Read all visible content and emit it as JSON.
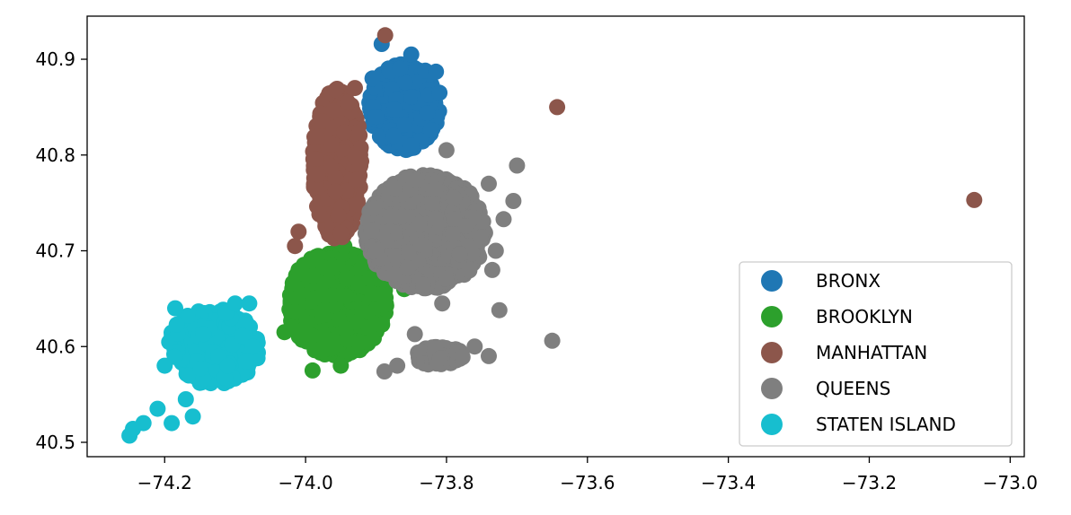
{
  "chart_data": {
    "type": "scatter",
    "title": "",
    "xlabel": "",
    "ylabel": "",
    "xlim": [
      -74.31,
      -72.98
    ],
    "ylim": [
      40.485,
      40.945
    ],
    "xticks": [
      -74.2,
      -74.0,
      -73.8,
      -73.6,
      -73.4,
      -73.2,
      -73.0
    ],
    "yticks": [
      40.5,
      40.6,
      40.7,
      40.8,
      40.9
    ],
    "xtick_labels": [
      "−74.2",
      "−74.0",
      "−73.8",
      "−73.6",
      "−73.4",
      "−73.2",
      "−73.0"
    ],
    "ytick_labels": [
      "40.5",
      "40.6",
      "40.7",
      "40.8",
      "40.9"
    ],
    "grid": false,
    "legend_position": "bottom-right",
    "series": [
      {
        "name": "BRONX",
        "color": "#1f77b4",
        "regions": [
          {
            "center": [
              -73.86,
              40.85
            ],
            "spread": [
              0.05,
              0.045
            ],
            "count": 500
          }
        ],
        "points": [
          [
            -73.892,
            40.916
          ],
          [
            -73.85,
            40.905
          ],
          [
            -73.83,
            40.888
          ],
          [
            -73.815,
            40.887
          ],
          [
            -73.81,
            40.865
          ],
          [
            -73.85,
            40.81
          ],
          [
            -73.822,
            40.826
          ],
          [
            -73.9,
            40.84
          ],
          [
            -73.905,
            40.88
          ],
          [
            -73.875,
            40.82
          ]
        ]
      },
      {
        "name": "BROOKLYN",
        "color": "#2ca02c",
        "regions": [
          {
            "center": [
              -73.955,
              40.645
            ],
            "spread": [
              0.07,
              0.055
            ],
            "count": 700
          }
        ],
        "points": [
          [
            -73.965,
            40.725
          ],
          [
            -73.945,
            40.705
          ],
          [
            -74.03,
            40.615
          ],
          [
            -74.02,
            40.62
          ],
          [
            -73.99,
            40.575
          ],
          [
            -73.95,
            40.58
          ],
          [
            -73.91,
            40.62
          ],
          [
            -73.905,
            40.655
          ],
          [
            -73.88,
            40.67
          ],
          [
            -73.86,
            40.66
          ],
          [
            -74.01,
            40.68
          ]
        ]
      },
      {
        "name": "MANHATTAN",
        "color": "#8c564b",
        "regions": [
          {
            "center": [
              -73.955,
              40.79
            ],
            "spread": [
              0.035,
              0.08
            ],
            "count": 500
          }
        ],
        "points": [
          [
            -73.887,
            40.925
          ],
          [
            -73.643,
            40.85
          ],
          [
            -73.051,
            40.753
          ],
          [
            -74.015,
            40.705
          ],
          [
            -74.01,
            40.72
          ],
          [
            -73.93,
            40.87
          ],
          [
            -73.94,
            40.855
          ]
        ]
      },
      {
        "name": "QUEENS",
        "color": "#7f7f7f",
        "regions": [
          {
            "center": [
              -73.83,
              40.72
            ],
            "spread": [
              0.085,
              0.06
            ],
            "count": 900
          },
          {
            "center": [
              -73.81,
              40.59
            ],
            "spread": [
              0.035,
              0.01
            ],
            "count": 80
          }
        ],
        "points": [
          [
            -73.7,
            40.789
          ],
          [
            -73.8,
            40.805
          ],
          [
            -73.705,
            40.752
          ],
          [
            -73.719,
            40.733
          ],
          [
            -73.806,
            40.645
          ],
          [
            -73.65,
            40.606
          ],
          [
            -73.888,
            40.574
          ],
          [
            -73.725,
            40.638
          ],
          [
            -73.845,
            40.613
          ],
          [
            -73.76,
            40.6
          ],
          [
            -73.74,
            40.59
          ],
          [
            -73.87,
            40.58
          ],
          [
            -73.74,
            40.77
          ],
          [
            -73.735,
            40.68
          ],
          [
            -73.73,
            40.7
          ],
          [
            -73.9,
            40.7
          ]
        ]
      },
      {
        "name": "STATEN ISLAND",
        "color": "#17becf",
        "regions": [
          {
            "center": [
              -74.13,
              40.6
            ],
            "spread": [
              0.065,
              0.04
            ],
            "count": 300
          }
        ],
        "points": [
          [
            -74.25,
            40.507
          ],
          [
            -74.245,
            40.514
          ],
          [
            -74.23,
            40.52
          ],
          [
            -74.21,
            40.535
          ],
          [
            -74.19,
            40.52
          ],
          [
            -74.16,
            40.527
          ],
          [
            -74.185,
            40.64
          ],
          [
            -74.1,
            40.645
          ],
          [
            -74.08,
            40.645
          ],
          [
            -74.075,
            40.6
          ],
          [
            -74.2,
            40.58
          ],
          [
            -74.17,
            40.545
          ]
        ]
      }
    ]
  }
}
